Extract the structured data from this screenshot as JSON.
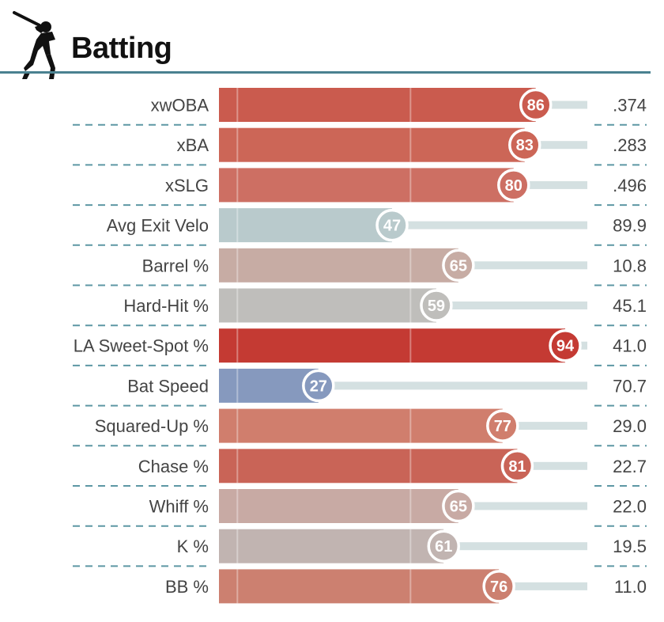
{
  "header": {
    "title": "Batting",
    "icon": "batter-silhouette-icon"
  },
  "chart_data": {
    "type": "bar",
    "orientation": "horizontal",
    "title": "Batting",
    "percentile_range": [
      0,
      100
    ],
    "categories": [
      "xwOBA",
      "xBA",
      "xSLG",
      "Avg Exit Velo",
      "Barrel %",
      "Hard-Hit %",
      "LA Sweet-Spot %",
      "Bat Speed",
      "Squared-Up %",
      "Chase %",
      "Whiff %",
      "K %",
      "BB %"
    ],
    "percentiles": [
      86,
      83,
      80,
      47,
      65,
      59,
      94,
      27,
      77,
      81,
      65,
      61,
      76
    ],
    "values": [
      ".374",
      ".283",
      ".496",
      "89.9",
      "10.8",
      "45.1",
      "41.0",
      "70.7",
      "29.0",
      "22.7",
      "22.0",
      "19.5",
      "11.0"
    ],
    "colors": [
      "#ca5b4e",
      "#cc6657",
      "#cd6f63",
      "#b9cacc",
      "#c7aca4",
      "#bfbebb",
      "#c43a33",
      "#8699be",
      "#d07e6d",
      "#c96457",
      "#c8aaa4",
      "#c1b4b1",
      "#cc8070"
    ],
    "track_color": "#d4e0e1",
    "separator_color": "#5d97a4"
  }
}
